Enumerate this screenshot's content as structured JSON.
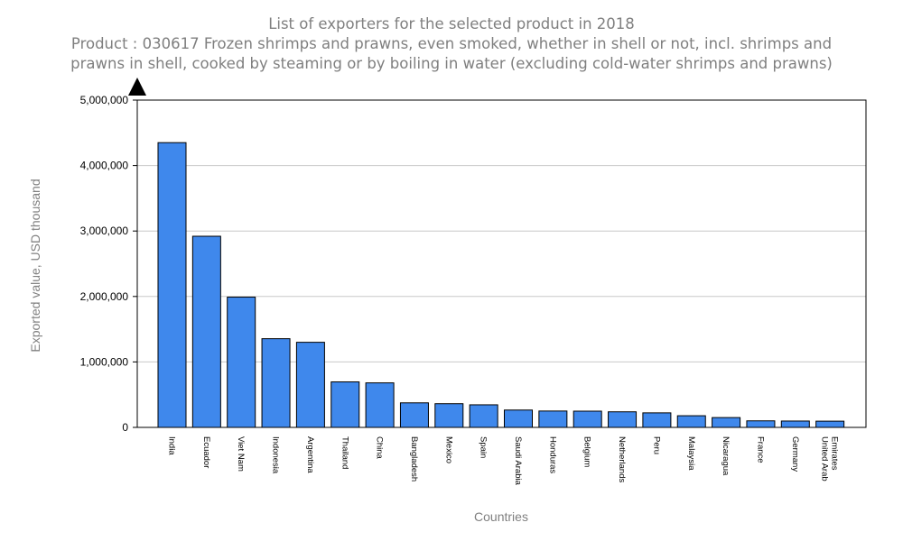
{
  "chart_data": {
    "type": "bar",
    "title": "List of exporters for the selected product in 2018",
    "subtitle_line1": "Product : 030617 Frozen shrimps and prawns, even smoked, whether in shell or not, incl. shrimps and",
    "subtitle_line2": "prawns in shell, cooked by steaming or by boiling in water (excluding cold-water shrimps and prawns)",
    "xlabel": "Countries",
    "ylabel": "Exported value, USD thousand",
    "ylim": [
      0,
      5000000
    ],
    "yticks": [
      "0",
      "1,000,000",
      "2,000,000",
      "3,000,000",
      "4,000,000",
      "5,000,000"
    ],
    "grid": true,
    "bar_color": "#3f88ec",
    "categories": [
      "India",
      "Ecuador",
      "Viet Nam",
      "Indonesia",
      "Argentina",
      "Thailand",
      "China",
      "Bangladesh",
      "Mexico",
      "Spain",
      "Saudi Arabia",
      "Honduras",
      "Belgium",
      "Netherlands",
      "Peru",
      "Malaysia",
      "Nicaragua",
      "France",
      "Germany",
      "United Arab Emirates"
    ],
    "values": [
      4350000,
      2920000,
      1990000,
      1355000,
      1300000,
      695000,
      680000,
      375000,
      362000,
      345000,
      265000,
      250000,
      248000,
      238000,
      222000,
      178000,
      150000,
      100000,
      97000,
      95000
    ]
  }
}
